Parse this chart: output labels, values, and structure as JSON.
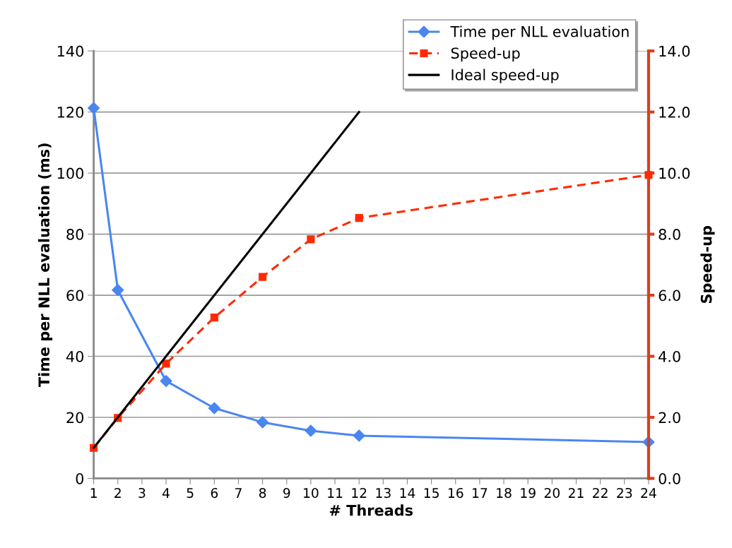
{
  "chart_data": {
    "type": "line",
    "xlabel": "# Threads",
    "ylabel": "Time per NLL evaluation (ms)",
    "y2label": "Speed-up",
    "xlim": [
      1,
      24
    ],
    "xticks": [
      1,
      2,
      3,
      4,
      5,
      6,
      7,
      8,
      9,
      10,
      11,
      12,
      13,
      14,
      15,
      16,
      17,
      18,
      19,
      20,
      21,
      22,
      23,
      24
    ],
    "ylim": [
      0,
      140
    ],
    "yticks": [
      0,
      20,
      40,
      60,
      80,
      100,
      120,
      140
    ],
    "y2lim": [
      0,
      14
    ],
    "y2ticks": [
      {
        "value": 0,
        "label": "0.0"
      },
      {
        "value": 2,
        "label": "2.0"
      },
      {
        "value": 4,
        "label": "4.0"
      },
      {
        "value": 6,
        "label": "6.0"
      },
      {
        "value": 8,
        "label": "8.0"
      },
      {
        "value": 10,
        "label": "10.0"
      },
      {
        "value": 12,
        "label": "12.0"
      },
      {
        "value": 14,
        "label": "14.0"
      }
    ],
    "grid": "y",
    "legend": "top right",
    "series": [
      {
        "name": "Time per NLL evaluation",
        "color": "#4a86f0",
        "marker": "diamond",
        "line_style": "solid",
        "x": [
          1,
          2,
          4,
          6,
          8,
          10,
          12,
          24
        ],
        "values": [
          121.3,
          61.7,
          31.9,
          23.0,
          18.4,
          15.6,
          14.0,
          11.9
        ]
      },
      {
        "name": "Speed-up",
        "color": "#ff2a00",
        "marker": "square",
        "line_style": "dashed",
        "axis": "y2",
        "x": [
          1,
          2,
          4,
          6,
          8,
          10,
          12,
          24
        ],
        "values": [
          1.0,
          1.98,
          3.76,
          5.27,
          6.6,
          7.83,
          8.53,
          9.94
        ]
      },
      {
        "name": "Ideal speed-up",
        "color": "#000000",
        "marker": "none",
        "line_style": "solid",
        "axis": "y2",
        "x": [
          1,
          12
        ],
        "values": [
          1,
          12
        ]
      }
    ]
  }
}
